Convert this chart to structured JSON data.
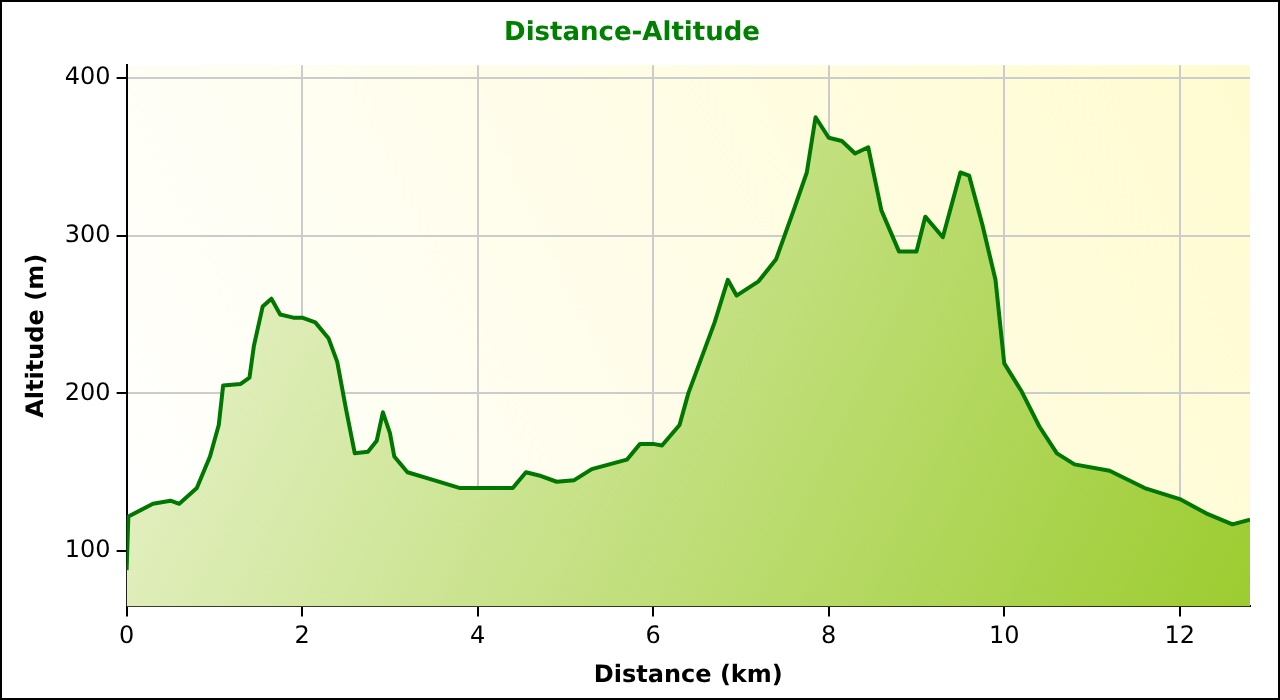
{
  "chart_data": {
    "type": "area",
    "title": "Distance-Altitude",
    "xlabel": "Distance (km)",
    "ylabel": "Altitude (m)",
    "x": [
      0,
      0.02,
      0.3,
      0.5,
      0.6,
      0.8,
      0.95,
      1.05,
      1.1,
      1.3,
      1.4,
      1.45,
      1.55,
      1.65,
      1.75,
      1.9,
      2.0,
      2.15,
      2.3,
      2.4,
      2.5,
      2.6,
      2.75,
      2.85,
      2.92,
      3.0,
      3.05,
      3.2,
      3.5,
      3.8,
      4.0,
      4.2,
      4.4,
      4.55,
      4.7,
      4.9,
      5.1,
      5.3,
      5.5,
      5.7,
      5.85,
      6.0,
      6.1,
      6.3,
      6.4,
      6.7,
      6.85,
      6.95,
      7.2,
      7.4,
      7.6,
      7.75,
      7.85,
      8.0,
      8.15,
      8.3,
      8.45,
      8.6,
      8.8,
      9.0,
      9.1,
      9.3,
      9.5,
      9.6,
      9.75,
      9.9,
      10.0,
      10.2,
      10.4,
      10.6,
      10.8,
      11.2,
      11.6,
      12.0,
      12.3,
      12.6,
      12.8
    ],
    "series": [
      {
        "color": "#007700",
        "values": [
          88,
          122,
          130,
          132,
          130,
          140,
          160,
          180,
          205,
          206,
          210,
          230,
          255,
          260,
          250,
          248,
          248,
          245,
          235,
          220,
          190,
          162,
          163,
          170,
          188,
          175,
          160,
          150,
          145,
          140,
          140,
          140,
          140,
          150,
          148,
          144,
          145,
          152,
          155,
          158,
          168,
          168,
          167,
          180,
          200,
          245,
          272,
          262,
          271,
          285,
          316,
          340,
          375,
          362,
          360,
          352,
          356,
          316,
          290,
          290,
          312,
          299,
          340,
          338,
          307,
          272,
          219,
          201,
          179,
          162,
          155,
          151,
          140,
          133,
          124,
          117,
          120
        ]
      }
    ],
    "xlim": [
      0,
      12.8
    ],
    "ylim": [
      65,
      408
    ],
    "xticks": [
      0,
      2,
      4,
      6,
      8,
      10,
      12
    ],
    "yticks": [
      100,
      200,
      300,
      400
    ],
    "grid": true
  }
}
